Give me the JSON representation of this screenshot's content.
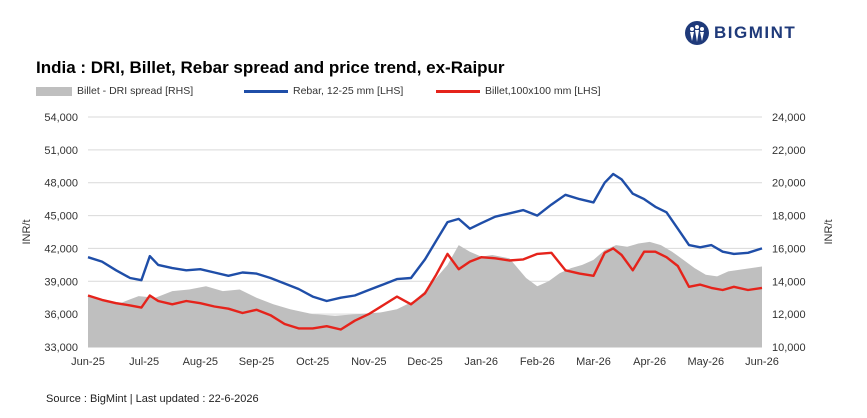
{
  "brand": {
    "name": "BIGMINT",
    "color": "#1f3a7a"
  },
  "title": "India : DRI, Billet, Rebar spread and price trend, ex-Raipur",
  "source": "Source : BigMint | Last updated : 22-6-2026",
  "legend": [
    {
      "label": "Billet - DRI spread  [RHS]",
      "kind": "area",
      "color": "#bfbfbf"
    },
    {
      "label": "Rebar, 12-25 mm [LHS]",
      "kind": "line",
      "color": "#1f4ea8"
    },
    {
      "label": "Billet,100x100 mm [LHS]",
      "kind": "line",
      "color": "#e5231b"
    }
  ],
  "chart_data": {
    "type": "line",
    "title": "India : DRI, Billet, Rebar spread and price trend, ex-Raipur",
    "xlabel": "",
    "ylabel": "INR/t",
    "y2label": "INR/t",
    "categories": [
      "Jun-25",
      "Jul-25",
      "Aug-25",
      "Sep-25",
      "Oct-25",
      "Nov-25",
      "Dec-25",
      "Jan-26",
      "Feb-26",
      "Mar-26",
      "Apr-26",
      "May-26",
      "Jun-26"
    ],
    "ylim": [
      33000,
      54000
    ],
    "yticks": [
      "33,000",
      "36,000",
      "39,000",
      "42,000",
      "45,000",
      "48,000",
      "51,000",
      "54,000"
    ],
    "y2lim": [
      10000,
      24000
    ],
    "y2ticks": [
      "10,000",
      "12,000",
      "14,000",
      "16,000",
      "18,000",
      "20,000",
      "22,000",
      "24,000"
    ],
    "grid": true,
    "legend_position": "top",
    "series": [
      {
        "name": "Billet - DRI spread  [RHS]",
        "axis": "right",
        "type": "area",
        "color": "#bfbfbf",
        "x": [
          0,
          0.3,
          0.6,
          0.9,
          1.2,
          1.5,
          1.8,
          2.1,
          2.4,
          2.7,
          3.0,
          3.3,
          3.6,
          4.0,
          4.4,
          4.8,
          5.2,
          5.5,
          5.8,
          6.0,
          6.2,
          6.4,
          6.6,
          6.8,
          7.0,
          7.2,
          7.5,
          7.8,
          8.0,
          8.2,
          8.4,
          8.6,
          8.8,
          9.0,
          9.2,
          9.4,
          9.6,
          9.8,
          10.0,
          10.2,
          10.4,
          10.6,
          10.8,
          11.0,
          11.2,
          11.4,
          11.6,
          11.8,
          12.0
        ],
        "values": [
          13100,
          12800,
          12700,
          13100,
          13000,
          13400,
          13500,
          13700,
          13400,
          13500,
          13000,
          12600,
          12300,
          12000,
          11900,
          12000,
          12100,
          12300,
          12800,
          13400,
          14200,
          15000,
          16200,
          15800,
          15500,
          15600,
          15400,
          14200,
          13700,
          14000,
          14500,
          14800,
          15000,
          15300,
          15900,
          16200,
          16100,
          16300,
          16400,
          16200,
          15800,
          15300,
          14800,
          14400,
          14300,
          14600,
          14700,
          14800,
          14900
        ]
      },
      {
        "name": "Rebar, 12-25 mm [LHS]",
        "axis": "left",
        "type": "line",
        "color": "#1f4ea8",
        "x": [
          0,
          0.25,
          0.5,
          0.75,
          0.95,
          1.1,
          1.25,
          1.5,
          1.75,
          2.0,
          2.25,
          2.5,
          2.75,
          3.0,
          3.25,
          3.5,
          3.75,
          4.0,
          4.25,
          4.5,
          4.75,
          5.0,
          5.25,
          5.5,
          5.75,
          6.0,
          6.2,
          6.4,
          6.6,
          6.8,
          7.0,
          7.25,
          7.5,
          7.75,
          8.0,
          8.25,
          8.5,
          8.75,
          9.0,
          9.2,
          9.35,
          9.5,
          9.7,
          9.9,
          10.1,
          10.3,
          10.5,
          10.7,
          10.9,
          11.1,
          11.3,
          11.5,
          11.75,
          12.0
        ],
        "values": [
          41200,
          40800,
          40000,
          39300,
          39100,
          41300,
          40500,
          40200,
          40000,
          40100,
          39800,
          39500,
          39800,
          39700,
          39300,
          38800,
          38300,
          37600,
          37200,
          37500,
          37700,
          38200,
          38700,
          39200,
          39300,
          41000,
          42700,
          44400,
          44700,
          43800,
          44300,
          44900,
          45200,
          45500,
          45000,
          46000,
          46900,
          46500,
          46200,
          48000,
          48800,
          48300,
          47000,
          46500,
          45800,
          45300,
          43800,
          42300,
          42100,
          42300,
          41700,
          41500,
          41600,
          42000
        ]
      },
      {
        "name": "Billet,100x100 mm [LHS]",
        "axis": "left",
        "type": "line",
        "color": "#e5231b",
        "x": [
          0,
          0.25,
          0.5,
          0.75,
          0.95,
          1.1,
          1.25,
          1.5,
          1.75,
          2.0,
          2.25,
          2.5,
          2.75,
          3.0,
          3.25,
          3.5,
          3.75,
          4.0,
          4.25,
          4.5,
          4.75,
          5.0,
          5.25,
          5.5,
          5.75,
          6.0,
          6.2,
          6.4,
          6.6,
          6.8,
          7.0,
          7.25,
          7.5,
          7.75,
          8.0,
          8.25,
          8.5,
          8.75,
          9.0,
          9.2,
          9.35,
          9.5,
          9.7,
          9.9,
          10.1,
          10.3,
          10.5,
          10.7,
          10.9,
          11.1,
          11.3,
          11.5,
          11.75,
          12.0
        ],
        "values": [
          37700,
          37300,
          37000,
          36800,
          36600,
          37700,
          37200,
          36900,
          37200,
          37000,
          36700,
          36500,
          36100,
          36400,
          35900,
          35100,
          34700,
          34700,
          34900,
          34600,
          35400,
          36000,
          36800,
          37600,
          36900,
          37900,
          39600,
          41500,
          40100,
          40800,
          41200,
          41100,
          40900,
          41000,
          41500,
          41600,
          40000,
          39700,
          39500,
          41600,
          42000,
          41400,
          40000,
          41700,
          41700,
          41200,
          40400,
          38500,
          38700,
          38400,
          38200,
          38500,
          38200,
          38400
        ]
      }
    ]
  }
}
